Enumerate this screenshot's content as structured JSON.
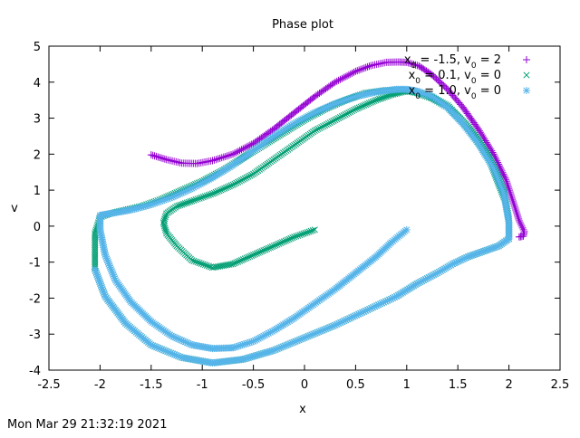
{
  "chart_data": {
    "type": "scatter",
    "title": "Phase plot",
    "xlabel": "x",
    "ylabel": "v",
    "xlim": [
      -2.5,
      2.5
    ],
    "ylim": [
      -4,
      5
    ],
    "xticks": [
      "-2.5",
      "-2",
      "-1.5",
      "-1",
      "-0.5",
      "0",
      "0.5",
      "1",
      "1.5",
      "2",
      "2.5"
    ],
    "yticks": [
      "-4",
      "-3",
      "-2",
      "-1",
      "0",
      "1",
      "2",
      "3",
      "4",
      "5"
    ],
    "grid": false,
    "legend_position": "top-right",
    "footer": "Mon Mar 29 21:32:19 2021",
    "series": [
      {
        "name": "x0 = -1.5, v0 = 2",
        "legend": {
          "a": "x",
          "s1": "0",
          "b": " = -1.5, v",
          "s2": "0",
          "c": " = 2"
        },
        "marker": "plus",
        "color": "#9400d3",
        "x": [
          -1.5,
          -1.35,
          -1.2,
          -1.05,
          -0.9,
          -0.7,
          -0.5,
          -0.3,
          -0.1,
          0.1,
          0.3,
          0.5,
          0.65,
          0.8,
          0.92,
          1.0,
          1.12,
          1.25,
          1.4,
          1.55,
          1.7,
          1.85,
          1.97,
          2.05,
          2.1,
          2.15,
          2.14,
          2.1
        ],
        "y": [
          1.98,
          1.85,
          1.75,
          1.74,
          1.82,
          2.0,
          2.3,
          2.7,
          3.15,
          3.6,
          4.0,
          4.3,
          4.46,
          4.55,
          4.56,
          4.55,
          4.45,
          4.2,
          3.8,
          3.3,
          2.7,
          2.0,
          1.3,
          0.6,
          0.15,
          -0.15,
          -0.28,
          -0.3
        ]
      },
      {
        "name": "x0 = 0.1, v0 = 0",
        "legend": {
          "a": "x",
          "s1": "0",
          "b": " = 0.1, v",
          "s2": "0",
          "c": " = 0"
        },
        "marker": "cross",
        "color": "#009e73",
        "x": [
          0.1,
          -0.1,
          -0.3,
          -0.5,
          -0.7,
          -0.9,
          -1.1,
          -1.25,
          -1.35,
          -1.38,
          -1.35,
          -1.25,
          -1.1,
          -0.9,
          -0.7,
          -0.5,
          -0.3,
          -0.1,
          0.1,
          0.3,
          0.5,
          0.7,
          0.85,
          0.95,
          1.0,
          1.1,
          1.25,
          1.4,
          1.55,
          1.7,
          1.85,
          1.95,
          2.0,
          2.0,
          1.9,
          1.75,
          1.6,
          1.45,
          1.3,
          1.1,
          0.9,
          0.6,
          0.3,
          0.0,
          -0.3,
          -0.6,
          -0.9,
          -1.2,
          -1.5,
          -1.75,
          -1.95,
          -2.05,
          -2.05,
          -2.0,
          -1.9,
          -1.8,
          -1.6,
          -1.4,
          -1.2,
          -1.0,
          -0.8,
          -0.6,
          -0.4,
          -0.2,
          0.0,
          0.2,
          0.4,
          0.6,
          0.8,
          1.0,
          1.2,
          1.4,
          1.6,
          1.8,
          1.95
        ],
        "y": [
          -0.1,
          -0.3,
          -0.55,
          -0.8,
          -1.05,
          -1.15,
          -0.95,
          -0.55,
          -0.2,
          0.1,
          0.35,
          0.55,
          0.7,
          0.9,
          1.15,
          1.45,
          1.85,
          2.25,
          2.65,
          2.95,
          3.25,
          3.5,
          3.65,
          3.72,
          3.75,
          3.7,
          3.55,
          3.3,
          2.9,
          2.4,
          1.7,
          1.0,
          0.2,
          -0.35,
          -0.55,
          -0.7,
          -0.85,
          -1.05,
          -1.3,
          -1.6,
          -1.95,
          -2.35,
          -2.75,
          -3.1,
          -3.45,
          -3.7,
          -3.8,
          -3.65,
          -3.3,
          -2.7,
          -1.95,
          -1.2,
          -0.2,
          0.25,
          0.35,
          0.42,
          0.55,
          0.75,
          1.0,
          1.25,
          1.55,
          1.9,
          2.25,
          2.6,
          2.95,
          3.25,
          3.5,
          3.7,
          3.78,
          3.78,
          3.65,
          3.35,
          2.75,
          1.9,
          0.8
        ]
      },
      {
        "name": "x0 = 1.0, v0 = 0",
        "legend": {
          "a": "x",
          "s1": "0",
          "b": " = 1.0, v",
          "s2": "0",
          "c": " = 0"
        },
        "marker": "star",
        "color": "#56b4e9",
        "x": [
          1.0,
          0.85,
          0.7,
          0.5,
          0.3,
          0.1,
          -0.1,
          -0.3,
          -0.5,
          -0.7,
          -0.9,
          -1.1,
          -1.3,
          -1.5,
          -1.7,
          -1.85,
          -1.95,
          -2.0,
          -2.0,
          -1.9,
          -1.7,
          -1.5,
          -1.3,
          -1.1,
          -0.9,
          -0.7,
          -0.5,
          -0.3,
          -0.1,
          0.1,
          0.3,
          0.5,
          0.7,
          0.9,
          1.0,
          1.1,
          1.25,
          1.4,
          1.55,
          1.7,
          1.85,
          1.95,
          2.0,
          2.0,
          1.9,
          1.75,
          1.6,
          1.45,
          1.3,
          1.1,
          0.9,
          0.6,
          0.3,
          0.0,
          -0.3,
          -0.6,
          -0.9,
          -1.2,
          -1.5,
          -1.75,
          -1.95,
          -2.05
        ],
        "y": [
          -0.1,
          -0.45,
          -0.85,
          -1.3,
          -1.75,
          -2.15,
          -2.55,
          -2.9,
          -3.2,
          -3.38,
          -3.4,
          -3.3,
          -3.05,
          -2.65,
          -2.1,
          -1.5,
          -0.8,
          -0.1,
          0.3,
          0.35,
          0.45,
          0.6,
          0.8,
          1.05,
          1.35,
          1.7,
          2.1,
          2.5,
          2.85,
          3.15,
          3.4,
          3.6,
          3.73,
          3.8,
          3.8,
          3.75,
          3.6,
          3.3,
          2.85,
          2.3,
          1.6,
          0.9,
          0.1,
          -0.35,
          -0.55,
          -0.7,
          -0.85,
          -1.05,
          -1.3,
          -1.6,
          -1.95,
          -2.35,
          -2.75,
          -3.1,
          -3.45,
          -3.7,
          -3.8,
          -3.65,
          -3.3,
          -2.7,
          -1.95,
          -1.2
        ]
      }
    ]
  }
}
